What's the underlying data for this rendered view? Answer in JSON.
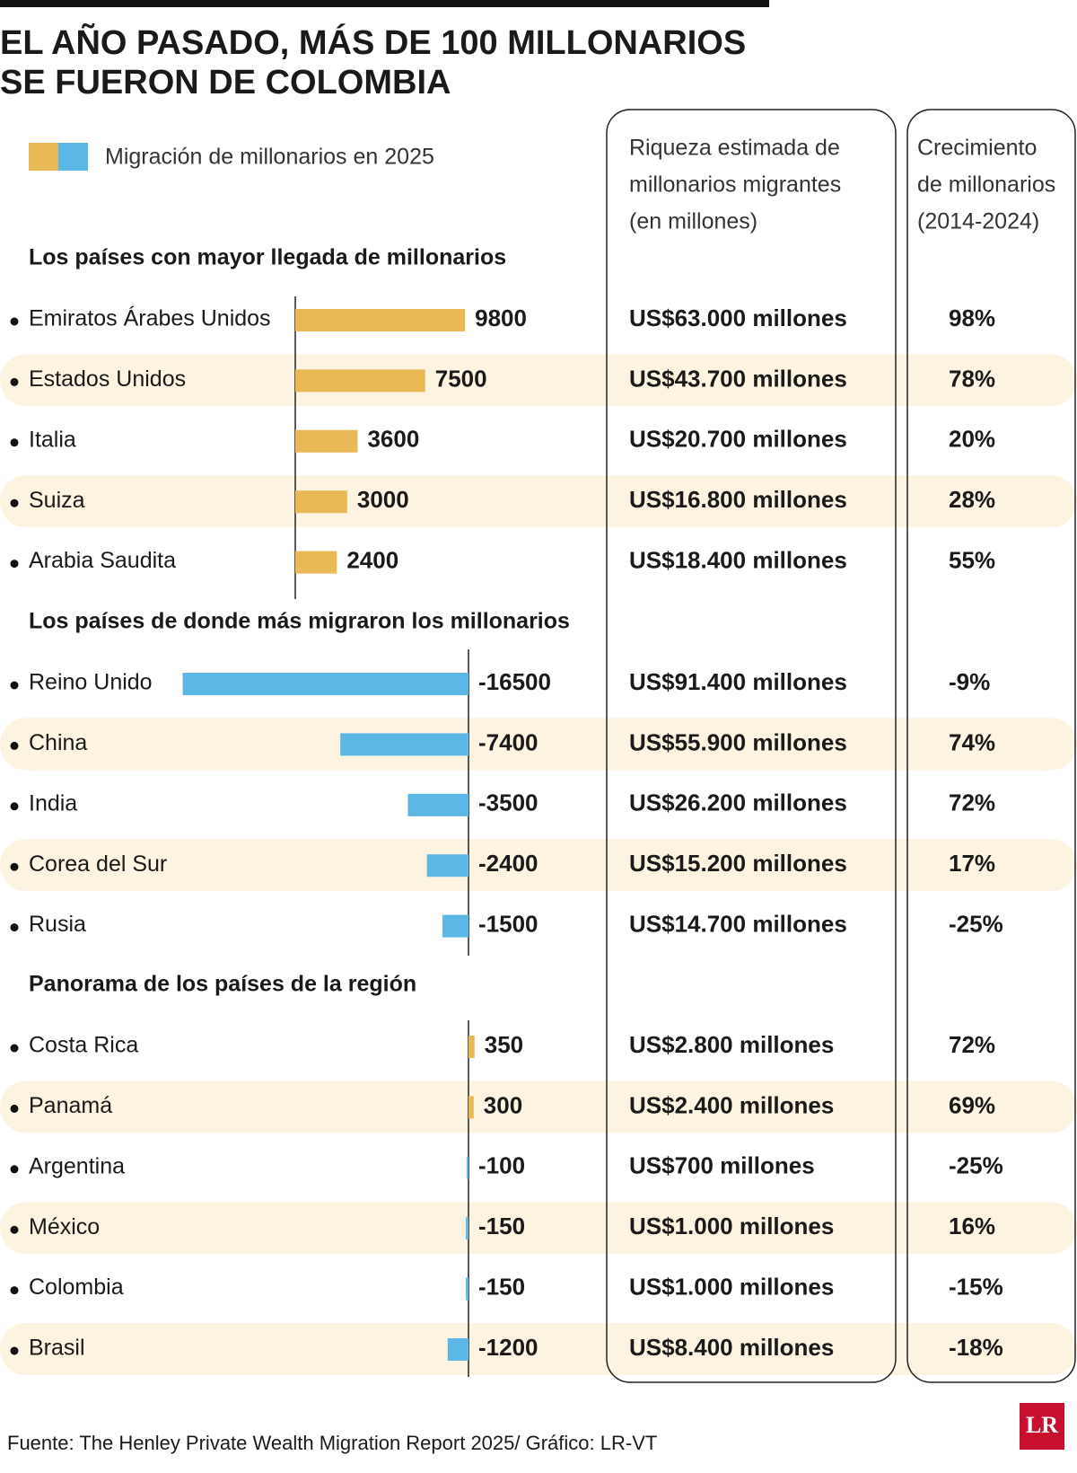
{
  "header": {
    "title_lines": [
      "EL AÑO PASADO, MÁS DE 100 MILLONARIOS",
      "SE FUERON DE COLOMBIA"
    ]
  },
  "legend": {
    "label": "Migración de millonarios en 2025"
  },
  "columns": {
    "wealth": [
      "Riqueza estimada de",
      "millonarios migrantes",
      "(en millones)"
    ],
    "growth": [
      "Crecimiento",
      "de millonarios",
      "(2014-2024)"
    ]
  },
  "colors": {
    "positive": "#e8b954",
    "negative": "#5bb8e6",
    "stripe": "#fcf3e1"
  },
  "sections": [
    {
      "title": "Los países con mayor llegada de millonarios",
      "rows": [
        {
          "country": "Emiratos Árabes Unidos",
          "value": 9800,
          "wealth": "US$63.000 millones",
          "growth": "98%"
        },
        {
          "country": "Estados Unidos",
          "value": 7500,
          "wealth": "US$43.700 millones",
          "growth": "78%"
        },
        {
          "country": "Italia",
          "value": 3600,
          "wealth": "US$20.700 millones",
          "growth": "20%"
        },
        {
          "country": "Suiza",
          "value": 3000,
          "wealth": "US$16.800 millones",
          "growth": "28%"
        },
        {
          "country": "Arabia Saudita",
          "value": 2400,
          "wealth": "US$18.400 millones",
          "growth": "55%"
        }
      ]
    },
    {
      "title": "Los países de donde más migraron los millonarios",
      "rows": [
        {
          "country": "Reino Unido",
          "value": -16500,
          "wealth": "US$91.400 millones",
          "growth": "-9%"
        },
        {
          "country": "China",
          "value": -7400,
          "wealth": "US$55.900 millones",
          "growth": "74%"
        },
        {
          "country": "India",
          "value": -3500,
          "wealth": "US$26.200 millones",
          "growth": "72%"
        },
        {
          "country": "Corea del Sur",
          "value": -2400,
          "wealth": "US$15.200 millones",
          "growth": "17%"
        },
        {
          "country": "Rusia",
          "value": -1500,
          "wealth": "US$14.700 millones",
          "growth": "-25%"
        }
      ]
    },
    {
      "title": "Panorama de los países de la región",
      "rows": [
        {
          "country": "Costa Rica",
          "value": 350,
          "wealth": "US$2.800 millones",
          "growth": "72%"
        },
        {
          "country": "Panamá",
          "value": 300,
          "wealth": "US$2.400 millones",
          "growth": "69%"
        },
        {
          "country": "Argentina",
          "value": -100,
          "wealth": "US$700 millones",
          "growth": "-25%"
        },
        {
          "country": "México",
          "value": -150,
          "wealth": "US$1.000 millones",
          "growth": "16%"
        },
        {
          "country": "Colombia",
          "value": -150,
          "wealth": "US$1.000 millones",
          "growth": "-15%"
        },
        {
          "country": "Brasil",
          "value": -1200,
          "wealth": "US$8.400 millones",
          "growth": "-18%"
        }
      ]
    }
  ],
  "footer": {
    "source": "Fuente: The Henley Private Wealth Migration Report 2025/ Gráfico: LR-VT",
    "logo": "LR"
  }
}
